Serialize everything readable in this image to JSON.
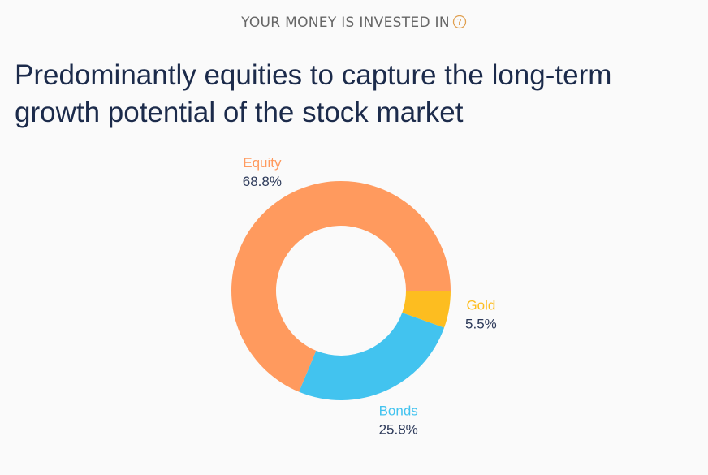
{
  "header": {
    "label": "YOUR MONEY IS INVESTED IN"
  },
  "headline": "Predominantly equities to capture the long-term growth potential of the stock market",
  "chart_data": {
    "type": "donut",
    "categories": [
      "Gold",
      "Bonds",
      "Equity"
    ],
    "values": [
      5.5,
      25.8,
      68.8
    ],
    "value_labels": [
      "5.5%",
      "25.8%",
      "68.8%"
    ],
    "colors": [
      "#fdbd20",
      "#42c3ef",
      "#ff9a5e"
    ]
  }
}
